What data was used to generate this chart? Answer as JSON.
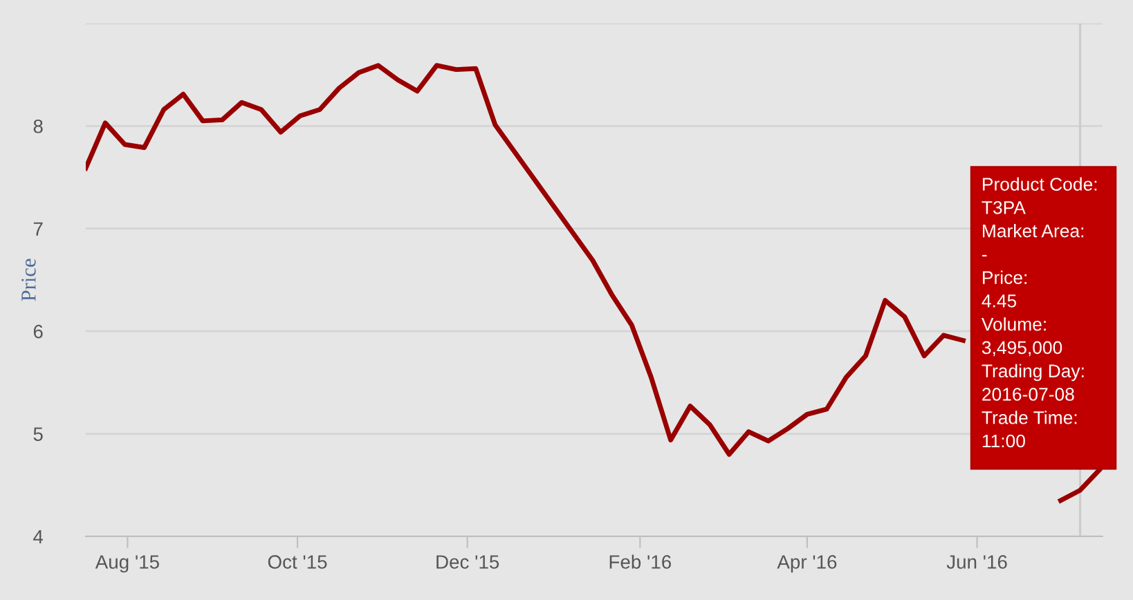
{
  "chart_data": {
    "type": "line",
    "ylabel": "Price",
    "x": [
      "2015-07-17",
      "2015-07-24",
      "2015-07-31",
      "2015-08-07",
      "2015-08-14",
      "2015-08-21",
      "2015-08-28",
      "2015-09-04",
      "2015-09-11",
      "2015-09-18",
      "2015-09-25",
      "2015-10-02",
      "2015-10-09",
      "2015-10-16",
      "2015-10-23",
      "2015-10-30",
      "2015-11-06",
      "2015-11-13",
      "2015-11-20",
      "2015-11-27",
      "2015-12-04",
      "2015-12-11",
      "2016-01-15",
      "2016-01-22",
      "2016-01-29",
      "2016-02-05",
      "2016-02-12",
      "2016-02-19",
      "2016-02-26",
      "2016-03-04",
      "2016-03-11",
      "2016-03-18",
      "2016-03-25",
      "2016-04-01",
      "2016-04-08",
      "2016-04-15",
      "2016-04-22",
      "2016-04-29",
      "2016-05-06",
      "2016-05-13",
      "2016-05-20",
      "2016-05-27",
      "2016-06-24",
      "2016-07-01",
      "2016-07-08",
      "2016-07-15"
    ],
    "series": [
      {
        "color": "#990000",
        "values": [
          7.59,
          8.03,
          7.82,
          7.79,
          8.16,
          8.31,
          8.05,
          8.06,
          8.23,
          8.16,
          7.94,
          8.1,
          8.16,
          8.37,
          8.52,
          8.59,
          8.45,
          8.34,
          8.59,
          8.55,
          8.56,
          8.01,
          6.69,
          6.35,
          6.06,
          5.55,
          4.94,
          5.27,
          5.09,
          4.8,
          5.02,
          4.93,
          5.05,
          5.19,
          5.24,
          5.55,
          5.76,
          6.3,
          6.14,
          5.76,
          5.96,
          5.91,
          null,
          4.35,
          4.45,
          4.65
        ]
      }
    ],
    "xlim": [
      "2015-07-17",
      "2016-07-16"
    ],
    "xticks": [
      {
        "value": "2015-08-01",
        "label": "Aug '15"
      },
      {
        "value": "2015-10-01",
        "label": "Oct '15"
      },
      {
        "value": "2015-12-01",
        "label": "Dec '15"
      },
      {
        "value": "2016-02-01",
        "label": "Feb '16"
      },
      {
        "value": "2016-04-01",
        "label": "Apr '16"
      },
      {
        "value": "2016-06-01",
        "label": "Jun '16"
      }
    ],
    "ylim": [
      4,
      9
    ],
    "yticks": [
      4,
      5,
      6,
      7,
      8,
      {
        "value": 9,
        "label": null
      }
    ],
    "grid": "y",
    "legend": false,
    "marker": "none",
    "line_style": "solid",
    "ref_lines": [
      {
        "axis": "x",
        "value": "2016-07-08",
        "color": "#cccccc"
      }
    ],
    "annotations": [
      "Product Code:",
      "T3PA",
      "Market Area:",
      "-",
      "Price:",
      "4.45",
      "Volume:",
      "3,495,000",
      "Trading Day:",
      "2016-07-08",
      "Trade Time:",
      "11:00"
    ]
  }
}
